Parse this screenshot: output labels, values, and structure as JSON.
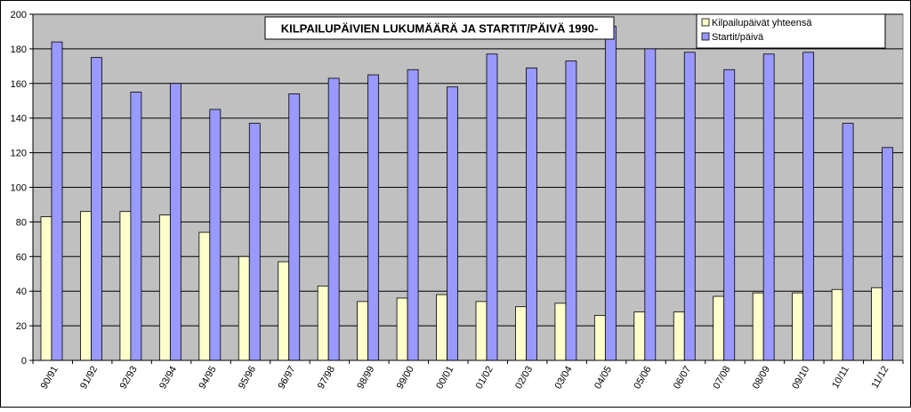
{
  "chart_data": {
    "type": "bar",
    "title": "KILPAILUPÄIVIEN LUKUMÄÄRÄ JA STARTIT/PÄIVÄ 1990-",
    "xlabel": "",
    "ylabel": "",
    "ylim": [
      0,
      200
    ],
    "yticks": [
      0,
      20,
      40,
      60,
      80,
      100,
      120,
      140,
      160,
      180,
      200
    ],
    "grid": true,
    "legend_position": "top-right",
    "plot_background": "#c0c0c0",
    "categories": [
      "90/91",
      "91/92",
      "92/93",
      "93/94",
      "94/95",
      "95/96",
      "96/97",
      "97/98",
      "98/99",
      "99/00",
      "00/01",
      "01/02",
      "02/03",
      "03/04",
      "04/05",
      "05/06",
      "06/07",
      "07/08",
      "08/09",
      "09/10",
      "10/11",
      "11/12"
    ],
    "series": [
      {
        "name": "Kilpailupäivät yhteensä",
        "color": "#ffffcc",
        "values": [
          83,
          86,
          86,
          84,
          74,
          60,
          57,
          43,
          34,
          36,
          38,
          34,
          31,
          33,
          26,
          28,
          28,
          37,
          39,
          39,
          41,
          42
        ]
      },
      {
        "name": "Startit/päivä",
        "color": "#9999ff",
        "values": [
          184,
          175,
          155,
          160,
          145,
          137,
          154,
          163,
          165,
          168,
          158,
          177,
          169,
          173,
          193,
          180,
          178,
          168,
          177,
          178,
          137,
          123
        ]
      }
    ]
  }
}
